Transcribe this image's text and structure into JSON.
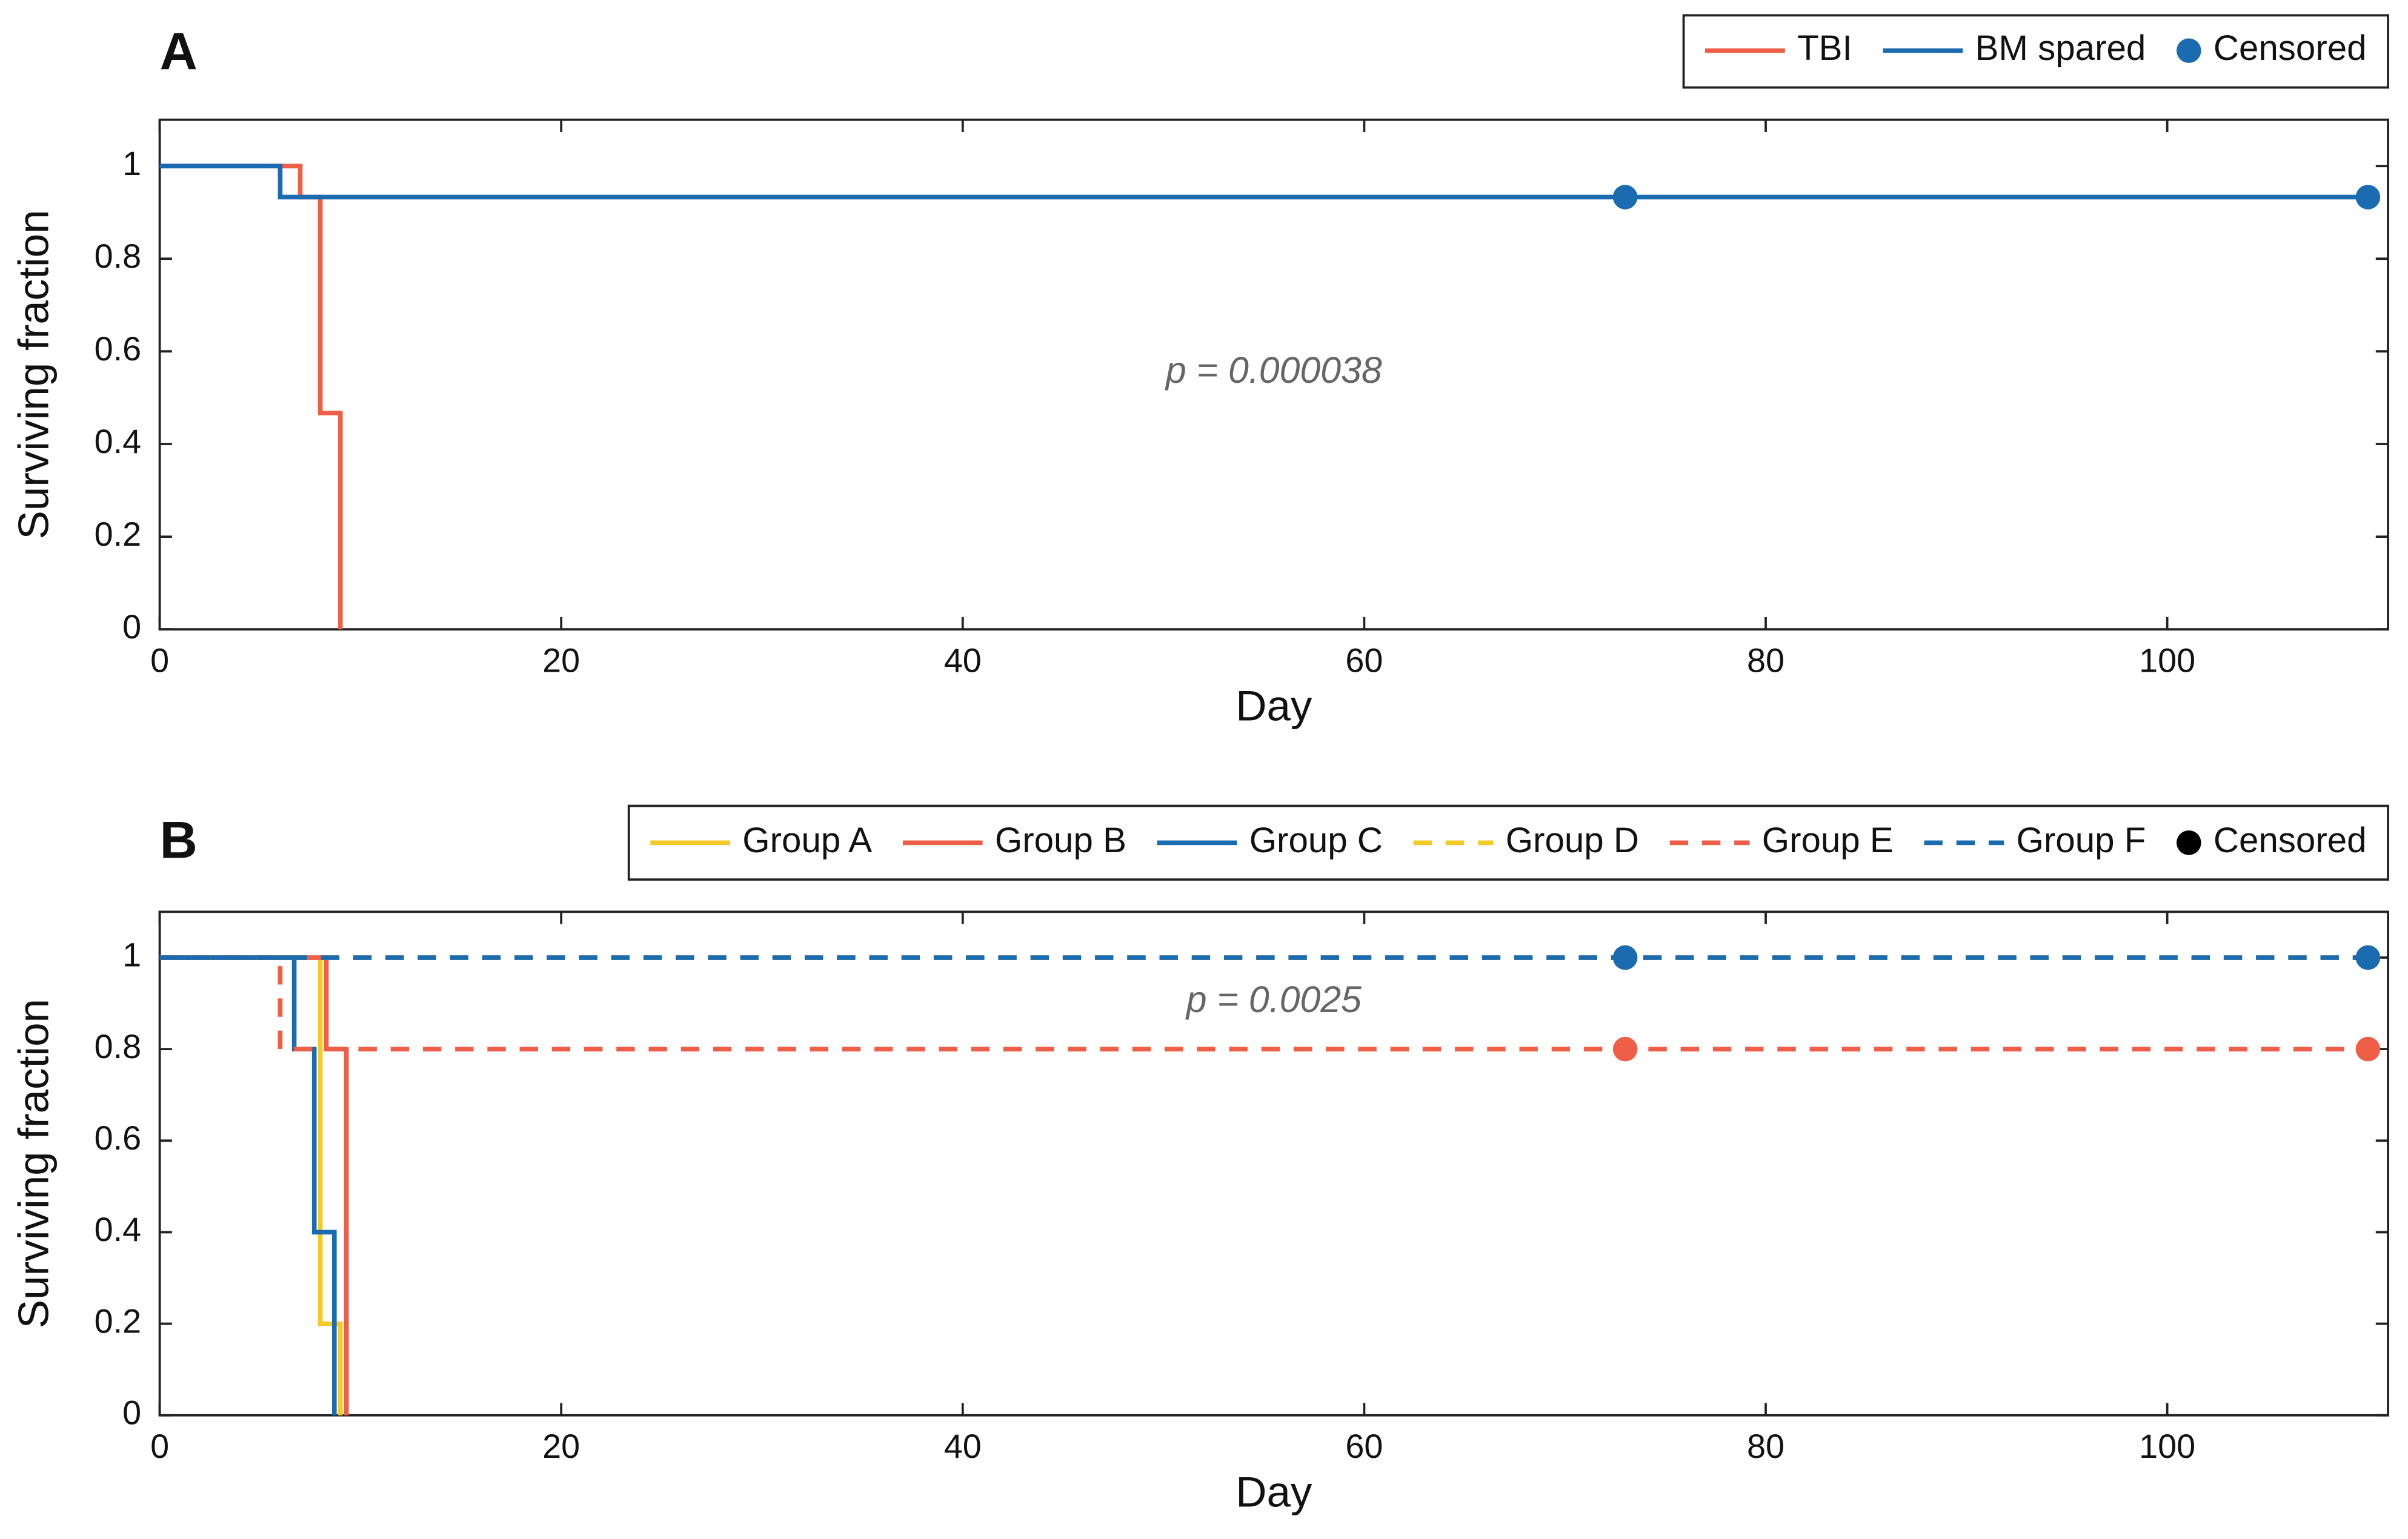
{
  "chart_data": [
    {
      "type": "line",
      "step": true,
      "panel_label": "A",
      "xlabel": "Day",
      "ylabel": "Surviving fraction",
      "xlim": [
        0,
        111
      ],
      "ylim": [
        0,
        1.1
      ],
      "xticks": [
        0,
        20,
        40,
        60,
        80,
        100
      ],
      "yticks": [
        0,
        0.2,
        0.4,
        0.6,
        0.8,
        1
      ],
      "legend": "top-right",
      "annotation": "p = 0.000038",
      "censored_label": "Censored",
      "censored_color": "#1a6bb0",
      "series": [
        {
          "name": "TBI",
          "color": "#ef5f48",
          "dash": false,
          "x": [
            0,
            7,
            8,
            9
          ],
          "values": [
            1,
            0.933,
            0.467,
            0
          ],
          "censored_x": []
        },
        {
          "name": "BM spared",
          "color": "#1a6bb0",
          "dash": false,
          "x": [
            0,
            6,
            110
          ],
          "values": [
            1,
            0.933,
            0.933
          ],
          "censored_x": [
            73,
            110
          ]
        }
      ]
    },
    {
      "type": "line",
      "step": true,
      "panel_label": "B",
      "xlabel": "Day",
      "ylabel": "Surviving fraction",
      "xlim": [
        0,
        111
      ],
      "ylim": [
        0,
        1.1
      ],
      "xticks": [
        0,
        20,
        40,
        60,
        80,
        100
      ],
      "yticks": [
        0,
        0.2,
        0.4,
        0.6,
        0.8,
        1
      ],
      "legend": "top-right",
      "annotation": "p = 0.0025",
      "censored_label": "Censored",
      "censored_color": "#000000",
      "series": [
        {
          "name": "Group A",
          "color": "#f5c928",
          "dash": false,
          "x": [
            0,
            8,
            9
          ],
          "values": [
            1,
            0.2,
            0
          ],
          "censored_x": []
        },
        {
          "name": "Group B",
          "color": "#ef5f48",
          "dash": false,
          "x": [
            0,
            8.3,
            9.3
          ],
          "values": [
            1,
            0.8,
            0
          ],
          "censored_x": []
        },
        {
          "name": "Group C",
          "color": "#1a6bb0",
          "dash": false,
          "x": [
            0,
            6.7,
            7.7,
            8.7
          ],
          "values": [
            1,
            0.8,
            0.4,
            0
          ],
          "censored_x": []
        },
        {
          "name": "Group D",
          "color": "#f5c928",
          "dash": true,
          "x": [
            0,
            110
          ],
          "values": [
            1,
            1
          ],
          "censored_x": [
            73,
            110
          ]
        },
        {
          "name": "Group E",
          "color": "#ef5f48",
          "dash": true,
          "x": [
            0,
            6,
            110
          ],
          "values": [
            1,
            0.8,
            0.8
          ],
          "censored_x": [
            73,
            110
          ]
        },
        {
          "name": "Group F",
          "color": "#1a6bb0",
          "dash": true,
          "x": [
            0,
            110
          ],
          "values": [
            1,
            1
          ],
          "censored_x": [
            73,
            110
          ]
        }
      ]
    }
  ]
}
